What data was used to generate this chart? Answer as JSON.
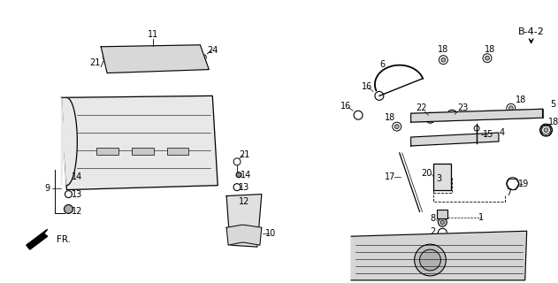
{
  "bg_color": "#ffffff",
  "line_color": "#000000",
  "gray_color": "#888888",
  "light_gray": "#cccccc",
  "fig_width": 6.31,
  "fig_height": 3.2,
  "dpi": 100
}
